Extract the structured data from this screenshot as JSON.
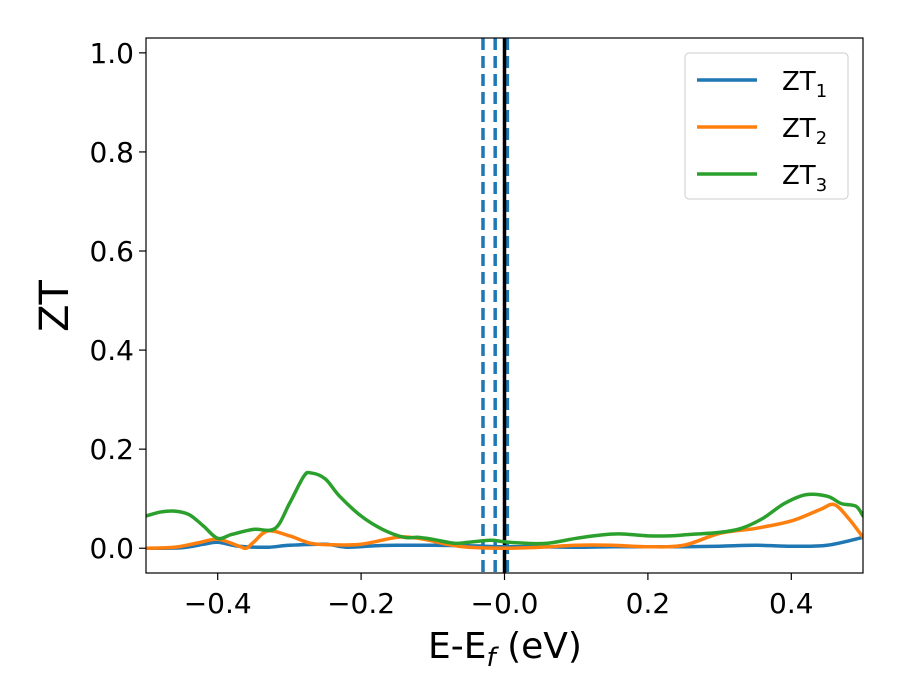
{
  "chart_data": {
    "type": "line",
    "xlabel": "E-E",
    "xlabel_sub": "f",
    "xlabel_unit": " (eV)",
    "ylabel": "ZT",
    "xlim": [
      -0.5,
      0.5
    ],
    "ylim": [
      -0.05,
      1.03
    ],
    "xticks": [
      -0.4,
      -0.2,
      0.0,
      0.2,
      0.4
    ],
    "xtick_labels": [
      "−0.4",
      "−0.2",
      "−0.0",
      "0.2",
      "0.4"
    ],
    "yticks": [
      0.0,
      0.2,
      0.4,
      0.6,
      0.8,
      1.0
    ],
    "ytick_labels": [
      "0.0",
      "0.2",
      "0.4",
      "0.6",
      "0.8",
      "1.0"
    ],
    "legend_position": "top-right",
    "grid": false,
    "vlines": [
      {
        "x": -0.03,
        "style": "dashed",
        "color": "#1f77b4"
      },
      {
        "x": -0.013,
        "style": "dashed",
        "color": "#1f77b4"
      },
      {
        "x": 0.004,
        "style": "dashed",
        "color": "#1f77b4"
      },
      {
        "x": 0.0,
        "style": "solid",
        "color": "#000000"
      }
    ],
    "series": [
      {
        "name": "ZT",
        "sub": "1",
        "color": "#1f77b4",
        "x": [
          -0.5,
          -0.45,
          -0.42,
          -0.4,
          -0.37,
          -0.33,
          -0.3,
          -0.25,
          -0.22,
          -0.18,
          -0.15,
          -0.1,
          -0.05,
          0.0,
          0.05,
          0.1,
          0.15,
          0.2,
          0.25,
          0.3,
          0.35,
          0.4,
          0.45,
          0.5
        ],
        "y": [
          0.0,
          0.001,
          0.008,
          0.012,
          0.004,
          0.002,
          0.006,
          0.008,
          0.002,
          0.005,
          0.006,
          0.006,
          0.005,
          0.003,
          0.003,
          0.002,
          0.003,
          0.003,
          0.003,
          0.004,
          0.006,
          0.004,
          0.006,
          0.022
        ]
      },
      {
        "name": "ZT",
        "sub": "2",
        "color": "#ff7f0e",
        "x": [
          -0.5,
          -0.46,
          -0.43,
          -0.4,
          -0.37,
          -0.36,
          -0.35,
          -0.33,
          -0.3,
          -0.27,
          -0.24,
          -0.2,
          -0.15,
          -0.12,
          -0.08,
          -0.05,
          0.0,
          0.05,
          0.1,
          0.15,
          0.2,
          0.25,
          0.3,
          0.35,
          0.4,
          0.44,
          0.46,
          0.48,
          0.5
        ],
        "y": [
          0.0,
          0.002,
          0.01,
          0.018,
          0.004,
          0.0,
          0.012,
          0.035,
          0.025,
          0.01,
          0.007,
          0.008,
          0.022,
          0.02,
          0.008,
          0.002,
          0.0,
          0.002,
          0.006,
          0.006,
          0.003,
          0.006,
          0.03,
          0.04,
          0.055,
          0.078,
          0.088,
          0.06,
          0.022
        ]
      },
      {
        "name": "ZT",
        "sub": "3",
        "color": "#2ca02c",
        "x": [
          -0.5,
          -0.48,
          -0.46,
          -0.44,
          -0.42,
          -0.4,
          -0.38,
          -0.35,
          -0.32,
          -0.3,
          -0.28,
          -0.27,
          -0.25,
          -0.23,
          -0.2,
          -0.17,
          -0.14,
          -0.12,
          -0.1,
          -0.07,
          -0.05,
          -0.02,
          0.0,
          0.03,
          0.06,
          0.1,
          0.13,
          0.16,
          0.2,
          0.23,
          0.26,
          0.3,
          0.33,
          0.36,
          0.39,
          0.42,
          0.45,
          0.47,
          0.49,
          0.5
        ],
        "y": [
          0.065,
          0.073,
          0.075,
          0.068,
          0.045,
          0.02,
          0.028,
          0.038,
          0.04,
          0.09,
          0.145,
          0.152,
          0.14,
          0.105,
          0.065,
          0.038,
          0.022,
          0.022,
          0.018,
          0.01,
          0.012,
          0.016,
          0.013,
          0.01,
          0.01,
          0.02,
          0.026,
          0.029,
          0.025,
          0.025,
          0.028,
          0.032,
          0.04,
          0.06,
          0.09,
          0.108,
          0.105,
          0.09,
          0.085,
          0.065
        ]
      }
    ]
  }
}
